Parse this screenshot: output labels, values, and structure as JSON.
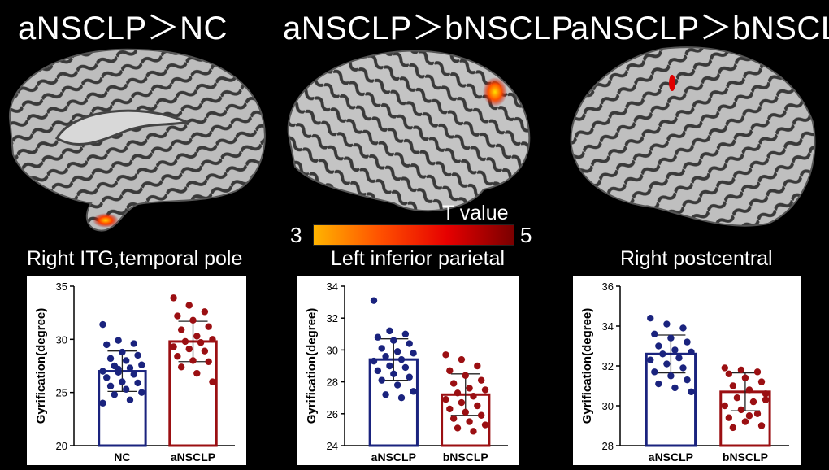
{
  "titles": [
    "aNSCLP＞NC",
    "aNSCLP＞bNSCLP",
    "aNSCLP＞bNSCLP"
  ],
  "regions": [
    "Right ITG,temporal pole",
    "Left inferior parietal",
    "Right postcentral"
  ],
  "colorbar": {
    "label": "T value",
    "min_label": "3",
    "max_label": "5",
    "colors": [
      "#ffb400",
      "#ff5000",
      "#e60000",
      "#7a0000"
    ]
  },
  "colors": {
    "blue": "#1a237e",
    "red": "#9b0f12"
  },
  "chart_data": [
    {
      "type": "bar",
      "ylabel": "Gyrification(degree)",
      "categories": [
        "NC",
        "aNSCLP"
      ],
      "ylim": [
        20,
        35
      ],
      "yticks": [
        "20",
        "25",
        "30",
        "35"
      ],
      "means": [
        27.0,
        29.8
      ],
      "sd": [
        1.9,
        1.9
      ],
      "points": [
        [
          31.4,
          29.9,
          29.6,
          29.5,
          28.8,
          28.5,
          28.2,
          28.0,
          27.6,
          27.5,
          27.3,
          27.0,
          26.9,
          26.7,
          26.4,
          26.0,
          25.9,
          25.6,
          25.3,
          25.0,
          24.8,
          24.3,
          24.0,
          27.2
        ],
        [
          33.9,
          33.2,
          32.6,
          32.2,
          31.8,
          31.2,
          30.9,
          30.3,
          30.0,
          29.8,
          29.7,
          29.3,
          29.1,
          28.9,
          28.4,
          28.0,
          27.9,
          27.4,
          26.8,
          26.0
        ]
      ]
    },
    {
      "type": "bar",
      "ylabel": "Gyrification(degree)",
      "categories": [
        "aNSCLP",
        "bNSCLP"
      ],
      "ylim": [
        24,
        34
      ],
      "yticks": [
        "24",
        "26",
        "28",
        "30",
        "32",
        "34"
      ],
      "means": [
        29.4,
        27.2
      ],
      "sd": [
        1.3,
        1.3
      ],
      "points": [
        [
          33.1,
          31.2,
          31.0,
          30.8,
          30.6,
          30.4,
          30.1,
          29.9,
          29.8,
          29.6,
          29.4,
          29.3,
          29.0,
          28.9,
          28.7,
          28.5,
          28.3,
          28.1,
          27.8,
          27.4,
          27.2,
          27.0
        ],
        [
          29.7,
          29.4,
          29.0,
          28.7,
          28.4,
          28.1,
          27.9,
          27.6,
          27.5,
          27.3,
          27.1,
          26.9,
          26.7,
          26.5,
          26.3,
          26.1,
          25.9,
          25.7,
          25.5,
          25.3,
          25.1,
          24.9
        ]
      ]
    },
    {
      "type": "bar",
      "ylabel": "Gyrification(degree)",
      "categories": [
        "aNSCLP",
        "bNSCLP"
      ],
      "ylim": [
        28,
        36
      ],
      "yticks": [
        "28",
        "30",
        "32",
        "34",
        "36"
      ],
      "means": [
        32.6,
        30.7
      ],
      "sd": [
        0.95,
        0.95
      ],
      "points": [
        [
          34.4,
          34.1,
          33.9,
          33.6,
          33.4,
          33.2,
          33.0,
          32.8,
          32.7,
          32.6,
          32.4,
          32.3,
          32.1,
          31.9,
          31.7,
          31.5,
          31.3,
          31.1,
          30.9,
          30.7
        ],
        [
          31.9,
          31.8,
          31.7,
          31.6,
          31.4,
          31.2,
          31.0,
          30.8,
          30.6,
          30.4,
          30.2,
          30.0,
          29.8,
          29.6,
          29.4,
          29.2,
          29.0,
          28.9,
          29.5,
          30.3
        ]
      ]
    }
  ]
}
